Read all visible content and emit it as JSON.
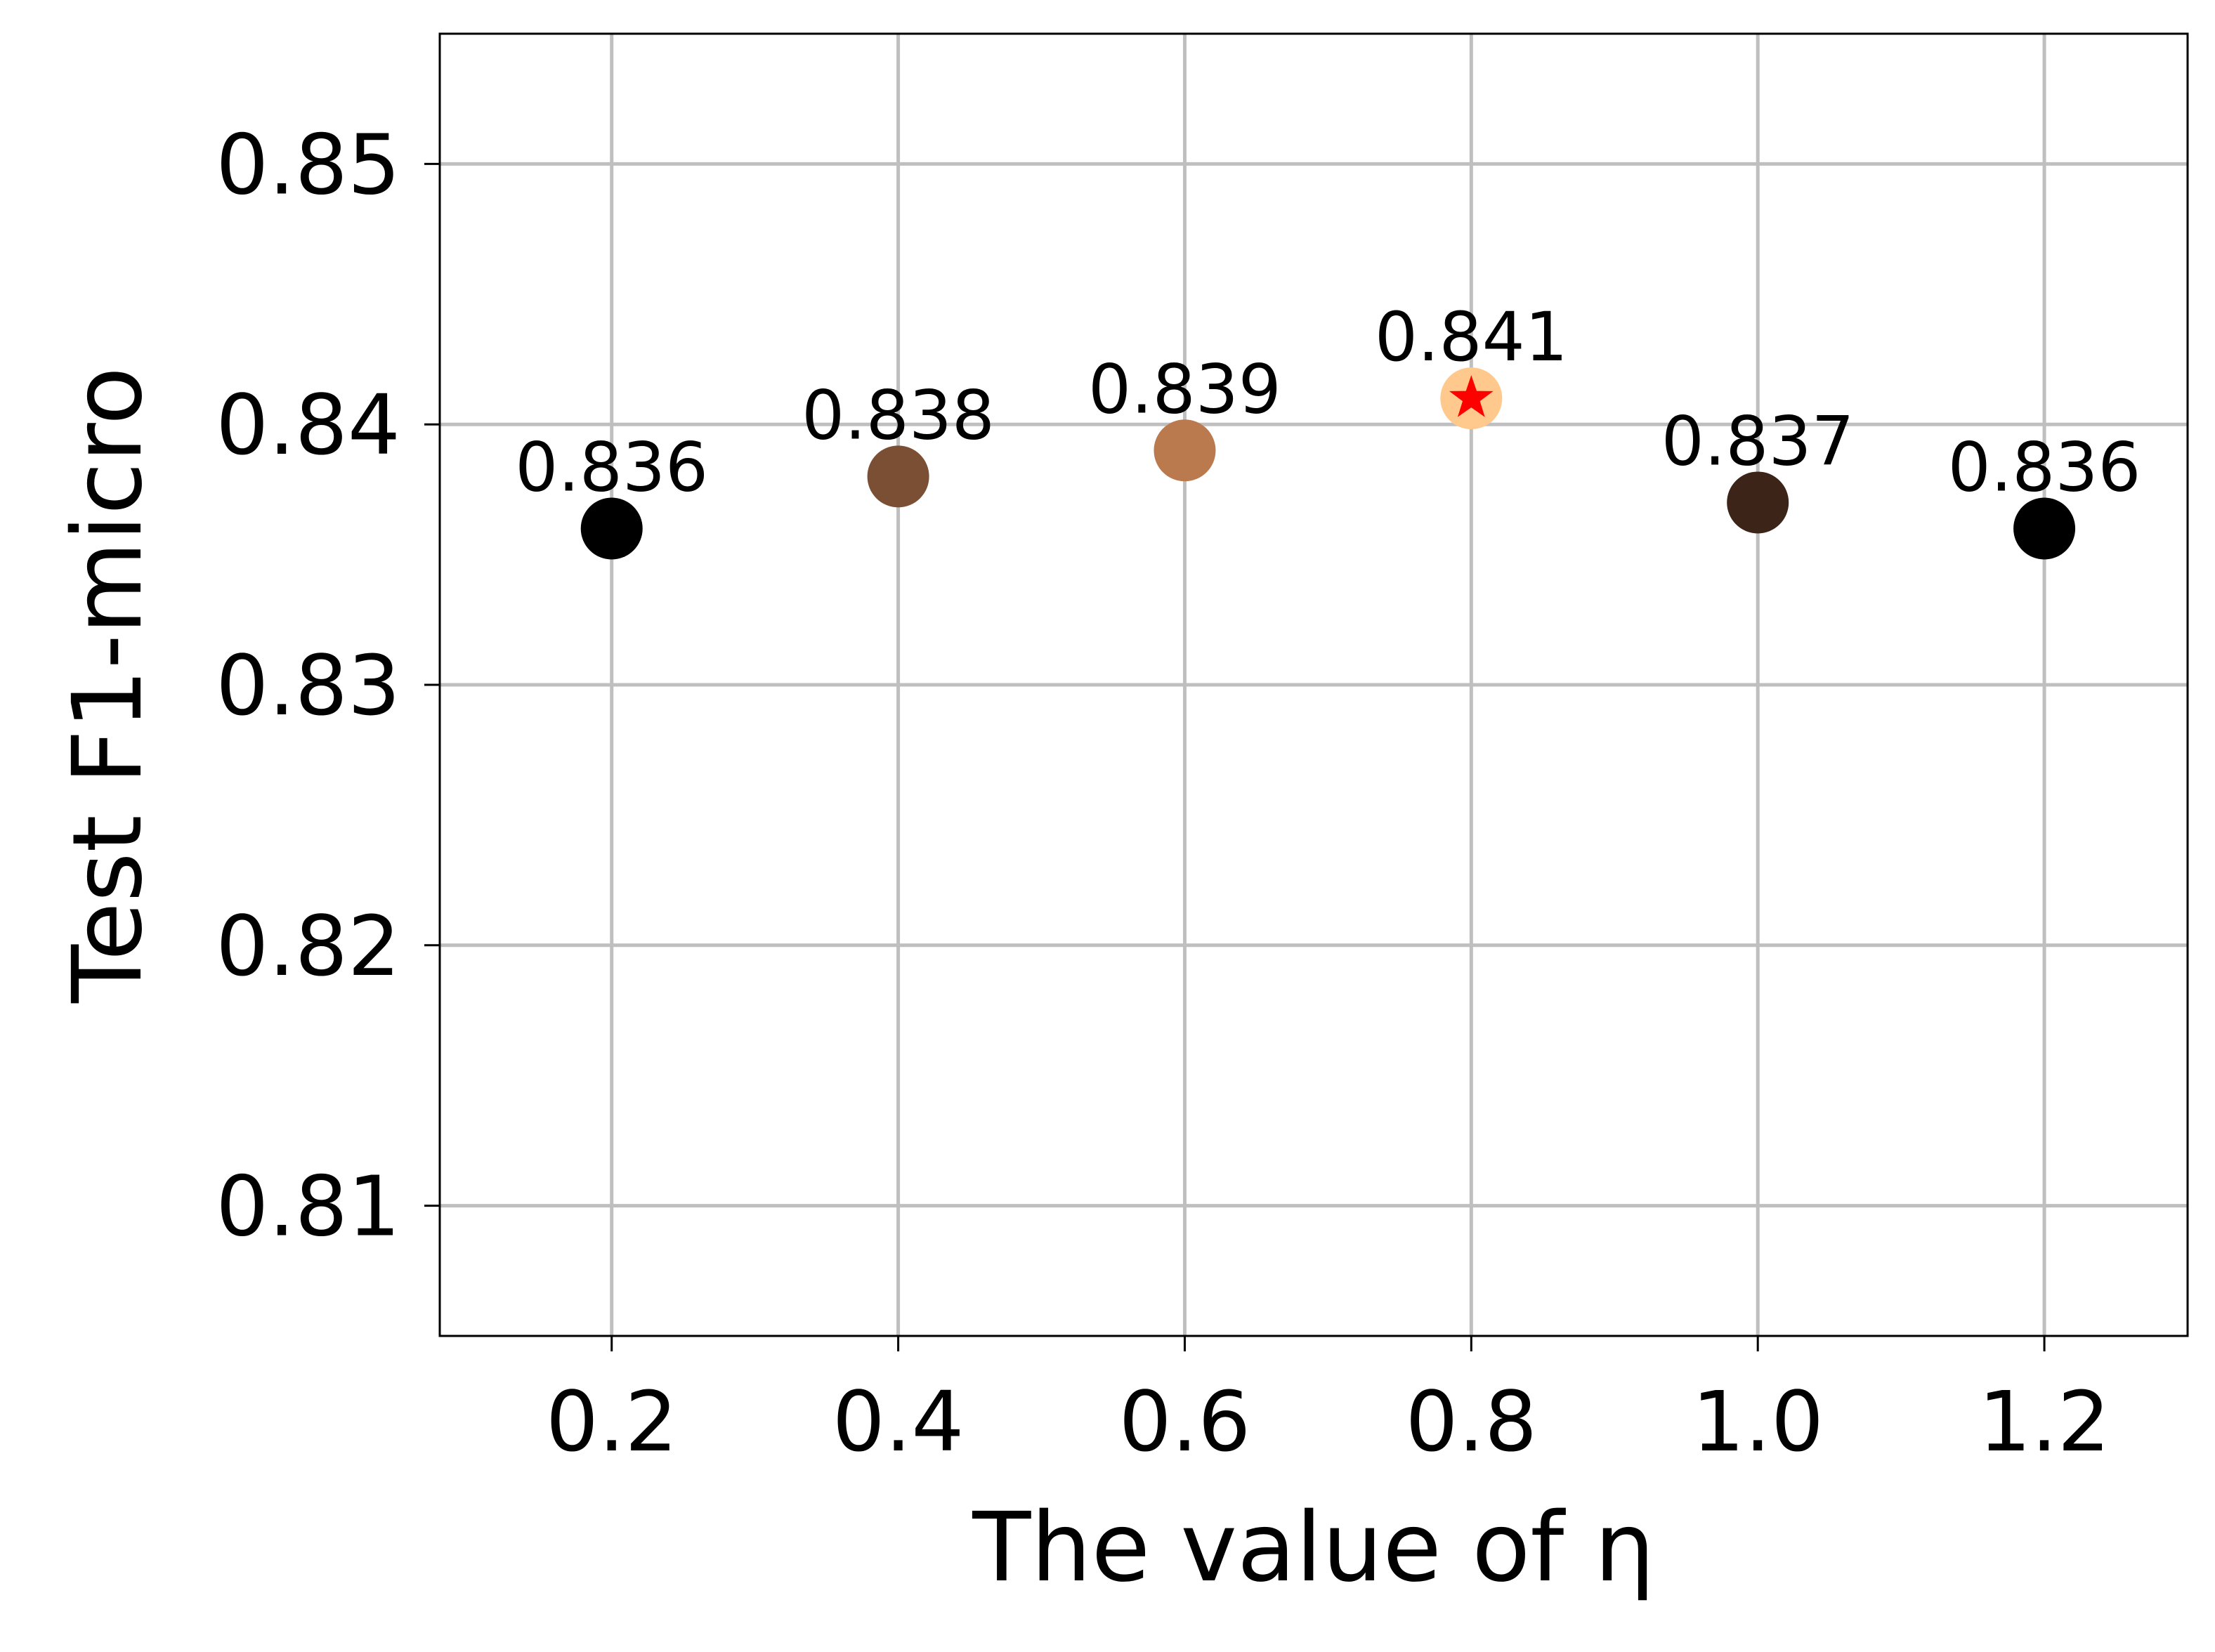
{
  "chart_data": {
    "type": "scatter",
    "title": "",
    "xlabel": "The value of η",
    "ylabel": "Test F1-micro",
    "xlim": [
      0.08,
      1.3
    ],
    "ylim": [
      0.805,
      0.855
    ],
    "xticks": [
      0.2,
      0.4,
      0.6,
      0.8,
      1.0,
      1.2
    ],
    "xtick_labels": [
      "0.2",
      "0.4",
      "0.6",
      "0.8",
      "1.0",
      "1.2"
    ],
    "yticks": [
      0.81,
      0.82,
      0.83,
      0.84,
      0.85
    ],
    "ytick_labels": [
      "0.81",
      "0.82",
      "0.83",
      "0.84",
      "0.85"
    ],
    "grid": true,
    "points": [
      {
        "x": 0.2,
        "y": 0.836,
        "label": "0.836",
        "color": "#000000"
      },
      {
        "x": 0.4,
        "y": 0.838,
        "label": "0.838",
        "color": "#7a4f34"
      },
      {
        "x": 0.6,
        "y": 0.839,
        "label": "0.839",
        "color": "#ba7a4e"
      },
      {
        "x": 0.8,
        "y": 0.841,
        "label": "0.841",
        "color": "#ffc98e",
        "best_marker": "star",
        "best_marker_color": "#ff0000"
      },
      {
        "x": 1.0,
        "y": 0.837,
        "label": "0.837",
        "color": "#3c2418"
      },
      {
        "x": 1.2,
        "y": 0.836,
        "label": "0.836",
        "color": "#000000"
      }
    ],
    "grid_color": "#bfbfbf"
  }
}
